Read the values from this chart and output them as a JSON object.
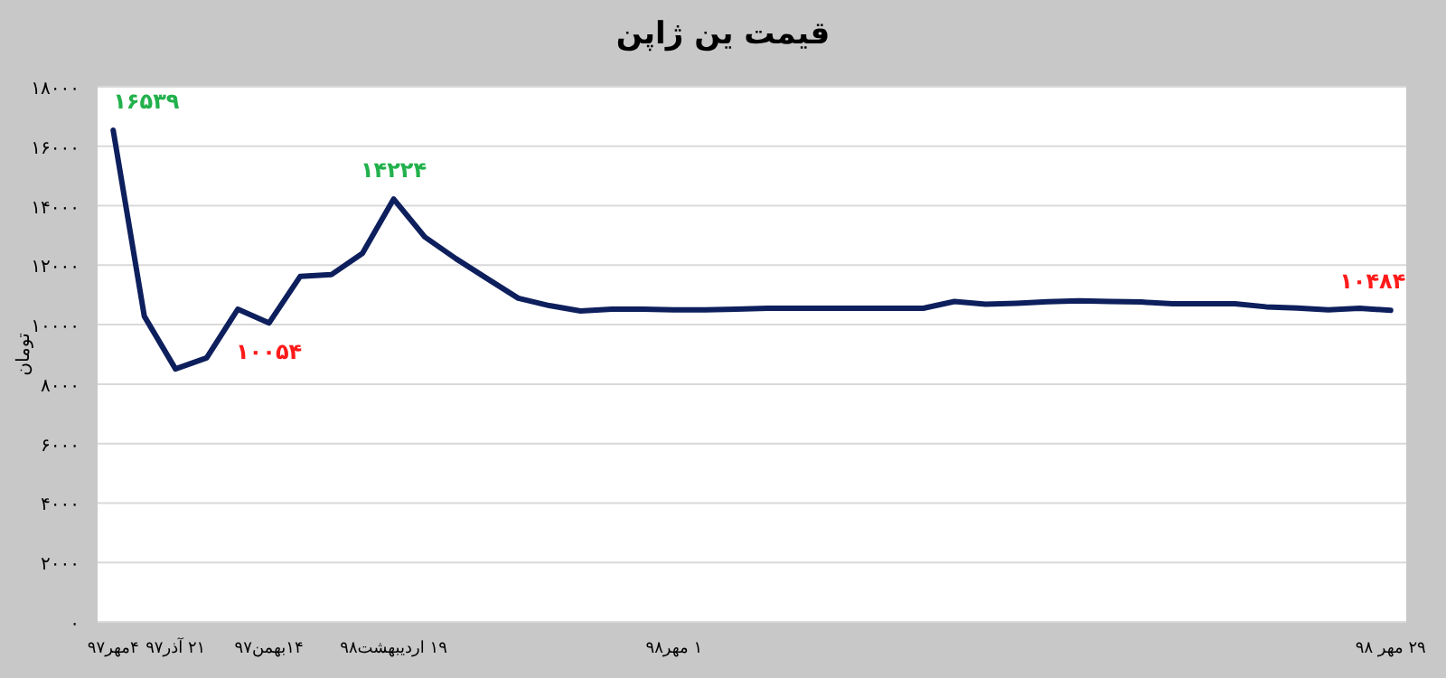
{
  "chart_data": {
    "type": "line",
    "title": "قیمت ین ژاپن",
    "ylabel": "تومان",
    "categories": [
      "۴مهر۹۷",
      null,
      "۲۱ آذر۹۷",
      null,
      null,
      "۱۴بهمن۹۷",
      null,
      null,
      null,
      "۱۹ اردیبهشت۹۸",
      null,
      null,
      null,
      null,
      null,
      null,
      null,
      null,
      "۱ مهر۹۸",
      null,
      null,
      null,
      null,
      null,
      null,
      null,
      null,
      null,
      null,
      null,
      null,
      null,
      null,
      null,
      null,
      null,
      null,
      null,
      null,
      null,
      null,
      "۲۹ مهر ۹۸"
    ],
    "series": [
      {
        "color": "#0d1f5c",
        "values": [
          16539,
          10280,
          8510,
          8880,
          10520,
          10054,
          11620,
          11680,
          12400,
          14224,
          12950,
          12220,
          11550,
          10890,
          10640,
          10460,
          10520,
          10520,
          10500,
          10500,
          10520,
          10550,
          10550,
          10550,
          10550,
          10550,
          10550,
          10780,
          10690,
          10720,
          10770,
          10800,
          10780,
          10760,
          10700,
          10700,
          10700,
          10600,
          10560,
          10500,
          10550,
          10484
        ],
        "value_labels": [
          "۱۶۵۳۹",
          null,
          null,
          null,
          null,
          "۱۰۰۵۴",
          null,
          null,
          null,
          "۱۴۲۲۴",
          null,
          null,
          null,
          null,
          null,
          null,
          null,
          null,
          null,
          null,
          null,
          null,
          null,
          null,
          null,
          null,
          null,
          null,
          null,
          null,
          null,
          null,
          null,
          null,
          null,
          null,
          null,
          null,
          null,
          null,
          null,
          "۱۰۴۸۴"
        ]
      }
    ],
    "ylim": [
      0,
      18000
    ],
    "yticks": [
      {
        "value": 0,
        "label": "۰"
      },
      {
        "value": 2000,
        "label": "۲۰۰۰"
      },
      {
        "value": 4000,
        "label": "۴۰۰۰"
      },
      {
        "value": 6000,
        "label": "۶۰۰۰"
      },
      {
        "value": 8000,
        "label": "۸۰۰۰"
      },
      {
        "value": 10000,
        "label": "۱۰۰۰۰"
      },
      {
        "value": 12000,
        "label": "۱۲۰۰۰"
      },
      {
        "value": 14000,
        "label": "۱۴۰۰۰"
      },
      {
        "value": 16000,
        "label": "۱۶۰۰۰"
      },
      {
        "value": 18000,
        "label": "۱۸۰۰۰"
      }
    ],
    "grid": "y",
    "marker": "none",
    "line_style": "solid"
  }
}
